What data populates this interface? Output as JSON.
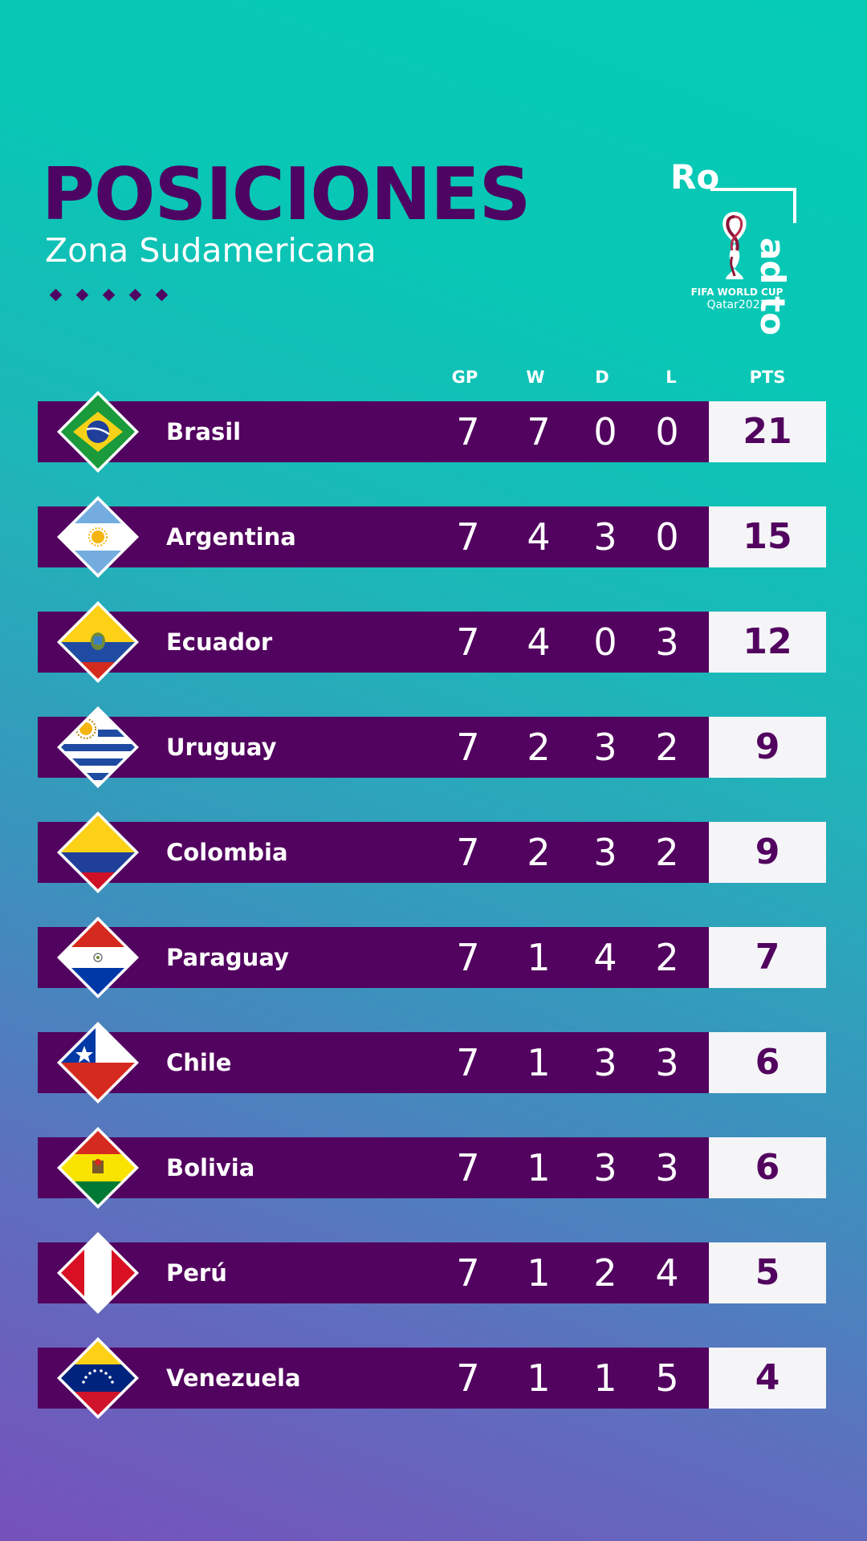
{
  "header": {
    "title": "POSICIONES",
    "subtitle": "Zona Sudamericana"
  },
  "logo": {
    "road_part1": "Ro",
    "road_part2": "ad to",
    "line1": "FIFA WORLD CUP",
    "line2": "Qatar2022"
  },
  "columns": {
    "gp": "GP",
    "w": "W",
    "d": "D",
    "l": "L",
    "pts": "PTS"
  },
  "rows": [
    {
      "team": "Brasil",
      "gp": "7",
      "w": "7",
      "d": "0",
      "l": "0",
      "pts": "21",
      "flag": "brazil-flag-icon"
    },
    {
      "team": "Argentina",
      "gp": "7",
      "w": "4",
      "d": "3",
      "l": "0",
      "pts": "15",
      "flag": "argentina-flag-icon"
    },
    {
      "team": "Ecuador",
      "gp": "7",
      "w": "4",
      "d": "0",
      "l": "3",
      "pts": "12",
      "flag": "ecuador-flag-icon"
    },
    {
      "team": "Uruguay",
      "gp": "7",
      "w": "2",
      "d": "3",
      "l": "2",
      "pts": "9",
      "flag": "uruguay-flag-icon"
    },
    {
      "team": "Colombia",
      "gp": "7",
      "w": "2",
      "d": "3",
      "l": "2",
      "pts": "9",
      "flag": "colombia-flag-icon"
    },
    {
      "team": "Paraguay",
      "gp": "7",
      "w": "1",
      "d": "4",
      "l": "2",
      "pts": "7",
      "flag": "paraguay-flag-icon"
    },
    {
      "team": "Chile",
      "gp": "7",
      "w": "1",
      "d": "3",
      "l": "3",
      "pts": "6",
      "flag": "chile-flag-icon"
    },
    {
      "team": "Bolivia",
      "gp": "7",
      "w": "1",
      "d": "3",
      "l": "3",
      "pts": "6",
      "flag": "bolivia-flag-icon"
    },
    {
      "team": "Perú",
      "gp": "7",
      "w": "1",
      "d": "2",
      "l": "4",
      "pts": "5",
      "flag": "peru-flag-icon"
    },
    {
      "team": "Venezuela",
      "gp": "7",
      "w": "1",
      "d": "1",
      "l": "5",
      "pts": "4",
      "flag": "venezuela-flag-icon"
    }
  ],
  "colors": {
    "primary": "#52025f",
    "accent_top": "#05cbb4",
    "accent_bottom": "#7651bb",
    "pts_bg": "#f5f5f7"
  }
}
